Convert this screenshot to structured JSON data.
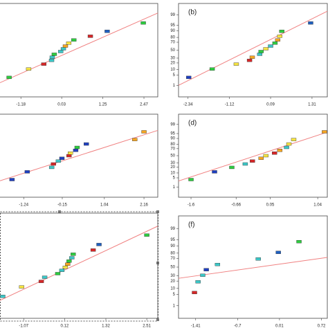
{
  "chart_data": [
    {
      "type": "scatter",
      "xlim": [
        -1.82,
        2.88
      ],
      "ylim": [
        0.1,
        99.9
      ],
      "xticks": [
        -1.18,
        0.03,
        1.25,
        2.47
      ],
      "yticks": [],
      "x": [
        -1.53,
        -0.95,
        -0.5,
        -0.27,
        -0.25,
        -0.19,
        0.0,
        0.08,
        0.14,
        0.24,
        0.39,
        0.88,
        1.38,
        2.45
      ],
      "values": [
        3.6,
        10.7,
        17.9,
        25,
        32.1,
        39.3,
        46.4,
        53.6,
        60.7,
        67.9,
        75,
        82.1,
        89.3,
        96.4
      ],
      "colors": [
        "#2ecc40",
        "#f5e342",
        "#d62728",
        "#3cc7c7",
        "#3cc7c7",
        "#2ecc40",
        "#3cc7c7",
        "#3cc7c7",
        "#f5a623",
        "#f5e342",
        "#2ecc40",
        "#d62728",
        "#1f5fbf",
        "#2ecc40"
      ],
      "fit": {
        "x": [
          -1.82,
          2.88
        ],
        "values": [
          1.5,
          99.3
        ],
        "color": "#f08080"
      }
    },
    {
      "type": "scatter",
      "title": "(b)",
      "xlim": [
        -2.62,
        1.76
      ],
      "ylim": [
        0.1,
        99.9
      ],
      "xticks": [
        -2.34,
        -1.12,
        0.09,
        1.31
      ],
      "yticks": [
        1,
        5,
        10,
        20,
        30,
        50,
        70,
        80,
        90,
        95,
        99
      ],
      "x": [
        -2.32,
        -1.63,
        -0.92,
        -0.53,
        -0.45,
        -0.23,
        -0.19,
        -0.05,
        0.09,
        0.22,
        0.3,
        0.36,
        0.42,
        1.27
      ],
      "values": [
        3.6,
        10.7,
        17.9,
        25,
        32.1,
        39.3,
        46.4,
        53.6,
        60.7,
        67.9,
        75,
        82.1,
        89.3,
        96.4
      ],
      "colors": [
        "#1f3fbf",
        "#2ecc40",
        "#f5e342",
        "#d62728",
        "#f5a623",
        "#3cc7c7",
        "#2ecc40",
        "#f5e342",
        "#3cc7c7",
        "#2ecc40",
        "#f5a623",
        "#f5e342",
        "#2ecc40",
        "#1f5fbf"
      ],
      "fit": {
        "x": [
          -2.62,
          1.76
        ],
        "values": [
          1,
          99.5
        ],
        "color": "#f08080"
      }
    },
    {
      "type": "scatter",
      "xlim": [
        -1.93,
        2.55
      ],
      "ylim": [
        0.1,
        99.9
      ],
      "xticks": [
        -1.24,
        -0.15,
        1.04,
        2.16
      ],
      "yticks": [],
      "x": [
        -1.57,
        -1.14,
        -0.45,
        -0.4,
        -0.26,
        -0.16,
        0.04,
        0.08,
        0.23,
        0.27,
        0.53,
        1.9,
        2.16
      ],
      "values": [
        3.8,
        11.5,
        19.2,
        26.9,
        34.6,
        42.3,
        50,
        57.7,
        65.4,
        73.1,
        80.8,
        88.5,
        96.2
      ],
      "colors": [
        "#1f3fbf",
        "#1f3fbf",
        "#3cc7c7",
        "#d62728",
        "#3cc7c7",
        "#1f3fbf",
        "#d62728",
        "#f5e342",
        "#1f3fbf",
        "#2ecc40",
        "#1f3fbf",
        "#f5a623",
        "#f5a623"
      ],
      "fit": {
        "x": [
          -1.93,
          2.55
        ],
        "values": [
          3,
          97
        ],
        "color": "#f08080"
      }
    },
    {
      "type": "scatter",
      "title": "(d)",
      "xlim": [
        -1.86,
        1.24
      ],
      "ylim": [
        0.1,
        99.9
      ],
      "xticks": [
        -1.6,
        -0.66,
        0.05,
        1.04
      ],
      "yticks": [
        1,
        5,
        10,
        20,
        30,
        50,
        70,
        80,
        90,
        95,
        99
      ],
      "x": [
        -1.6,
        -1.11,
        -0.75,
        -0.47,
        -0.32,
        -0.14,
        -0.04,
        0.14,
        0.25,
        0.39,
        0.44,
        0.54,
        1.18
      ],
      "values": [
        3.8,
        11.5,
        19.2,
        26.9,
        34.6,
        42.3,
        50,
        57.7,
        65.4,
        73.1,
        80.8,
        88.5,
        96.2
      ],
      "colors": [
        "#2ecc40",
        "#1f3fbf",
        "#2ecc40",
        "#3cc7c7",
        "#d62728",
        "#f5a623",
        "#f5e342",
        "#d62728",
        "#f5a623",
        "#3cc7c7",
        "#f5e342",
        "#f5e342",
        "#f5a623"
      ],
      "fit": {
        "x": [
          -1.86,
          1.24
        ],
        "values": [
          3,
          96
        ],
        "color": "#f08080"
      }
    },
    {
      "type": "scatter",
      "xlim": [
        -1.78,
        2.83
      ],
      "ylim": [
        0.1,
        99.9
      ],
      "xticks": [
        -1.07,
        0.12,
        1.32,
        2.51
      ],
      "yticks": [],
      "x": [
        -1.68,
        -1.13,
        -0.56,
        -0.46,
        -0.08,
        0.04,
        0.14,
        0.21,
        0.25,
        0.33,
        0.37,
        0.95,
        1.12,
        2.51
      ],
      "values": [
        3.6,
        10.7,
        17.9,
        25,
        32.1,
        39.3,
        46.4,
        53.6,
        60.7,
        67.9,
        75,
        82.1,
        89.3,
        96.4
      ],
      "colors": [
        "#3cc7c7",
        "#f5e342",
        "#d62728",
        "#3cc7c7",
        "#2ecc40",
        "#3cc7c7",
        "#f5e342",
        "#f5a623",
        "#2ecc40",
        "#3cc7c7",
        "#2ecc40",
        "#d62728",
        "#1f5fbf",
        "#2ecc40"
      ],
      "fit": {
        "x": [
          -1.78,
          2.83
        ],
        "values": [
          2,
          99
        ],
        "color": "#f08080"
      }
    },
    {
      "type": "scatter",
      "title": "(f)",
      "xlim": [
        -1.7,
        0.82
      ],
      "ylim": [
        0.1,
        99.9
      ],
      "xticks": [
        -1.41,
        -0.7,
        0.01,
        0.72
      ],
      "yticks": [
        1,
        5,
        10,
        20,
        30,
        50,
        70,
        80,
        90,
        95,
        99
      ],
      "x": [
        -1.43,
        -1.37,
        -1.29,
        -1.23,
        -1.04,
        -0.35,
        -0.01,
        0.34
      ],
      "values": [
        6.25,
        18.75,
        31.25,
        43.75,
        56.25,
        68.75,
        81.25,
        93.75
      ],
      "colors": [
        "#d62728",
        "#3cc7c7",
        "#3cc7c7",
        "#1f3fbf",
        "#3cc7c7",
        "#3cc7c7",
        "#1f5fbf",
        "#2ecc40"
      ],
      "fit": {
        "x": [
          -1.7,
          0.82
        ],
        "values": [
          25,
          72
        ],
        "color": "#f08080"
      }
    }
  ]
}
